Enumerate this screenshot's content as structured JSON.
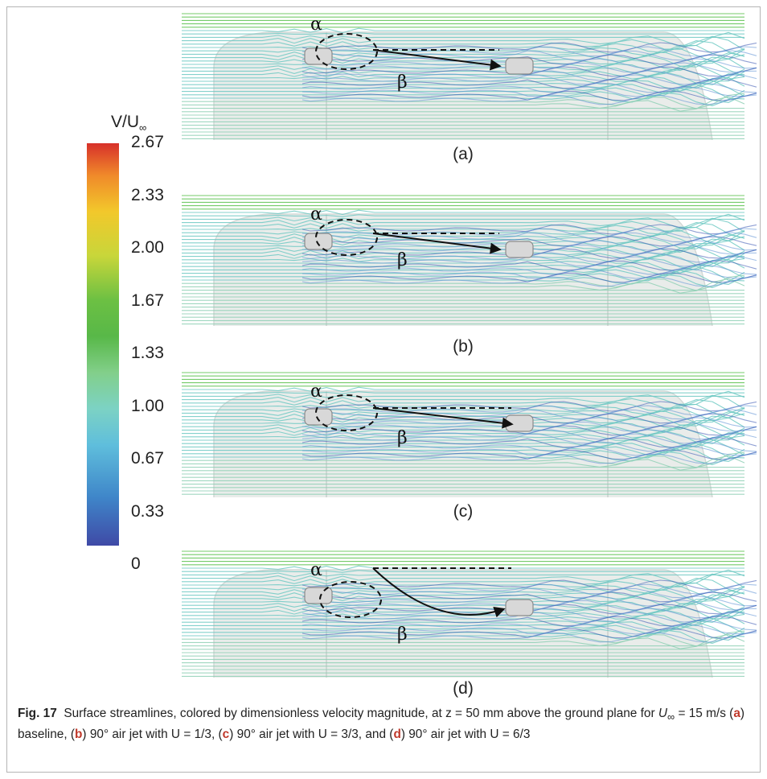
{
  "colorbar": {
    "title": "V/U",
    "title_sub": "∞",
    "ticks": [
      "2.67",
      "2.33",
      "2.00",
      "1.67",
      "1.33",
      "1.00",
      "0.67",
      "0.33",
      "0"
    ]
  },
  "panels": [
    {
      "label": "(a)",
      "alpha": "α",
      "beta": "β"
    },
    {
      "label": "(b)",
      "alpha": "α",
      "beta": "β"
    },
    {
      "label": "(c)",
      "alpha": "α",
      "beta": "β"
    },
    {
      "label": "(d)",
      "alpha": "α",
      "beta": "β"
    }
  ],
  "caption": {
    "fig_label": "Fig. 17",
    "t1": "Surface streamlines, colored by dimensionless velocity magnitude, at z = 50 mm above the ground plane for ",
    "u_sym": "U",
    "u_sub": "∞",
    "t2": " = 15 m/s (",
    "a": "a",
    "t3": ") baseline, (",
    "b": "b",
    "t4": ") 90° air jet with U = 1/3, (",
    "c": "c",
    "t5": ") 90° air jet with U = 3/3, and (",
    "d": "d",
    "t6": ") 90° air jet with U = 6/3"
  }
}
